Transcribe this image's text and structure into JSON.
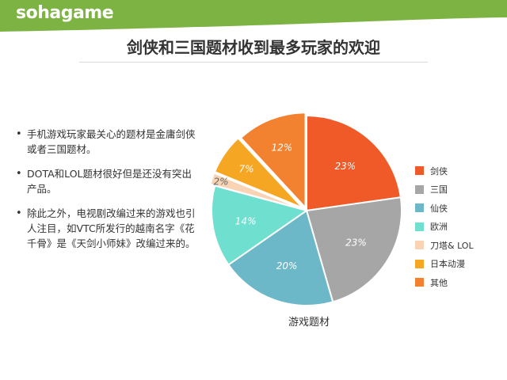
{
  "header": {
    "logo_text": "sohagame",
    "accent_color": "#7cb342"
  },
  "title": "剑侠和三国题材收到最多玩家的欢迎",
  "bullets": [
    "手机游戏玩家最关心的题材是金庸剑侠或者三国题材。",
    "DOTA和LOL题材很好但是还没有突出产品。",
    "除此之外，电视剧改编过来的游戏也引人注目，如VTC所发行的越南名字《花千骨》是《天剑小师妹》改编过来的。"
  ],
  "chart_data": {
    "type": "pie",
    "title": "",
    "xlabel": "游戏题材",
    "legend_position": "right",
    "categories": [
      "剑侠",
      "三国",
      "仙侠",
      "欧洲",
      "刀塔& LOL",
      "日本动漫",
      "其他"
    ],
    "values": [
      23,
      23,
      20,
      14,
      2,
      7,
      12
    ],
    "labels": [
      "23%",
      "23%",
      "20%",
      "14%",
      "2%",
      "7%",
      "12%"
    ],
    "colors": [
      "#f05a28",
      "#a6a6a6",
      "#6cb8c8",
      "#6fe0d0",
      "#f8d4b4",
      "#f5a623",
      "#f2822f"
    ]
  }
}
